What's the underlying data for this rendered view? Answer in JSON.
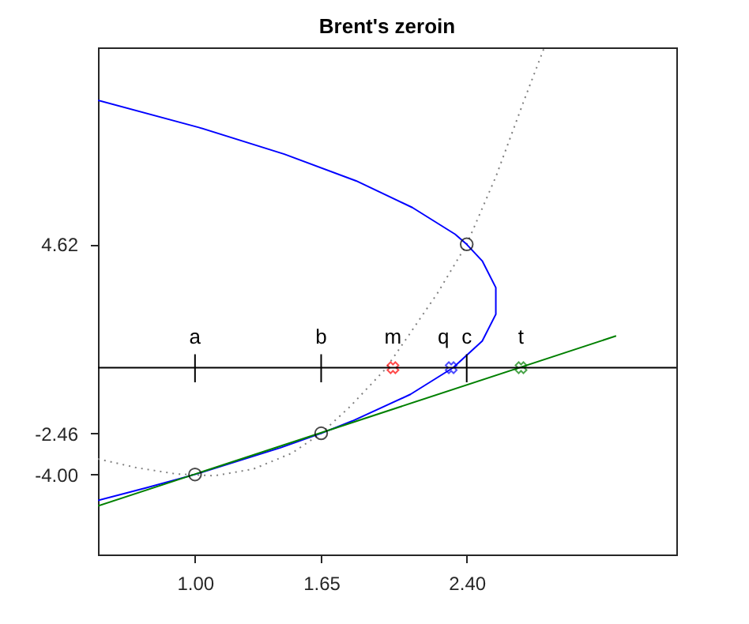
{
  "chart_data": {
    "type": "line",
    "title": "Brent's zeroin",
    "xlim": [
      0.5,
      3.48
    ],
    "xticks": [
      {
        "value": 1,
        "label": "1.00"
      },
      1.65,
      {
        "value": 2.4,
        "label": "2.40"
      }
    ],
    "ylim": [
      -7,
      12
    ],
    "yticks": [
      {
        "value": -4,
        "label": "-4.00"
      },
      -2.46,
      4.62
    ],
    "grid": false,
    "ref_lines": [
      {
        "axis": "y",
        "value": 0,
        "color": "#000000"
      }
    ],
    "series": [
      {
        "color": "#808080",
        "line_style": "dotted",
        "marker": "none",
        "x": [
          0.5,
          0.7,
          0.9,
          1.1,
          1.3,
          1.5,
          1.65,
          1.8,
          1.98,
          2.1,
          2.25,
          2.4,
          2.55,
          2.7,
          2.8
        ],
        "values": [
          -3.42,
          -3.75,
          -3.98,
          -4.05,
          -3.8,
          -3.2,
          -2.46,
          -1.45,
          -0.06,
          1.2,
          2.8,
          4.62,
          7.15,
          10.1,
          12
        ]
      },
      {
        "color": "#0000ff",
        "line_style": "solid",
        "marker": "none",
        "x": [
          0.5,
          0.75,
          1.0,
          1.44,
          1.65,
          1.81,
          2.11,
          2.33,
          2.48,
          2.55,
          2.55,
          2.48,
          2.4,
          2.34,
          2.12,
          1.83,
          1.46,
          1.02,
          0.5
        ],
        "values": [
          -4.97,
          -4.5,
          -4,
          -3,
          -2.46,
          -2,
          -1,
          0,
          1,
          2,
          3,
          4,
          4.62,
          5,
          6,
          7,
          8,
          9,
          10.02
        ]
      },
      {
        "color": "#008000",
        "line_style": "solid",
        "marker": "none",
        "x": [
          0.5,
          3.17
        ],
        "values": [
          -5.18,
          1.19
        ]
      },
      {
        "color": "#000000",
        "line_style": "solid",
        "marker": "none",
        "x": [
          1,
          1,
          null,
          1.65,
          1.65,
          null,
          2.4,
          2.4
        ],
        "values": [
          0.5,
          -0.55,
          null,
          0.5,
          -0.55,
          null,
          0.5,
          -0.55
        ]
      },
      {
        "type": "scatter",
        "color": "#000000",
        "marker": "circle",
        "x": [
          1,
          1.65,
          2.4
        ],
        "values": [
          -4,
          -2.46,
          4.62
        ]
      },
      {
        "type": "scatter",
        "color": "#ff0000",
        "marker": "cross",
        "x": [
          2.02
        ],
        "values": [
          0
        ]
      },
      {
        "type": "scatter",
        "color": "#0000ff",
        "marker": "cross",
        "x": [
          2.32
        ],
        "values": [
          0
        ]
      },
      {
        "type": "scatter",
        "color": "#008000",
        "marker": "cross",
        "x": [
          2.68
        ],
        "values": [
          0
        ]
      }
    ],
    "annotations": [
      {
        "text": "a",
        "x": 1,
        "y": 0
      },
      {
        "text": "b",
        "x": 1.65,
        "y": 0
      },
      {
        "text": "m",
        "x": 2.02,
        "y": 0
      },
      {
        "text": "q",
        "x": 2.28,
        "y": 0
      },
      {
        "text": "c",
        "x": 2.4,
        "y": 0
      },
      {
        "text": "t",
        "x": 2.68,
        "y": 0
      }
    ]
  }
}
